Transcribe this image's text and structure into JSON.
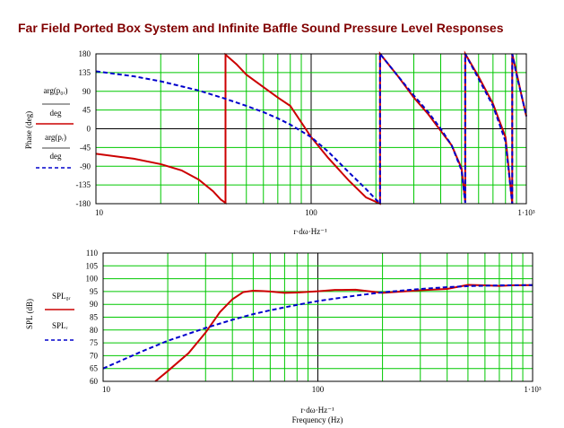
{
  "title": "Far Field Ported Box System and Infinite Baffle Sound Pressure Level Responses",
  "colors": {
    "red_series": "#cc0000",
    "blue_series": "#0000cc",
    "grid": "#00c800",
    "title": "#800000"
  },
  "chart_data": [
    {
      "type": "line",
      "xscale": "log",
      "xlim": [
        10,
        1000
      ],
      "ylim": [
        -180,
        180
      ],
      "grid": true,
      "ylabel": "Phase (deg)",
      "xlabel": "r·dω·Hz⁻¹",
      "x_ticks": [
        "10",
        "100",
        "1·10³"
      ],
      "y_ticks": [
        "180",
        "135",
        "90",
        "45",
        "0",
        "-45",
        "-90",
        "-135",
        "-180"
      ],
      "legend": [
        {
          "line1": "arg(p₀ᵣ)",
          "line2": "deg",
          "color": "#cc0000",
          "style": "solid"
        },
        {
          "line1": "arg(pᵣ)",
          "line2": "deg",
          "color": "#0000cc",
          "style": "dashed"
        }
      ],
      "series": [
        {
          "color": "#cc0000",
          "style": "solid",
          "x": [
            10,
            15,
            20,
            25,
            30,
            35,
            38,
            40,
            40,
            45,
            50,
            60,
            70,
            80,
            100,
            120,
            150,
            180,
            209,
            209,
            250,
            300,
            350,
            400,
            450,
            500,
            520,
            520,
            600,
            700,
            800,
            860,
            860,
            900,
            950,
            1000
          ],
          "y": [
            -60,
            -72,
            -85,
            -100,
            -122,
            -150,
            -170,
            -178,
            178,
            155,
            130,
            100,
            75,
            55,
            -20,
            -70,
            -125,
            -165,
            -180,
            180,
            130,
            75,
            35,
            -5,
            -40,
            -95,
            -175,
            180,
            125,
            60,
            -20,
            -180,
            180,
            135,
            80,
            30
          ]
        },
        {
          "color": "#0000cc",
          "style": "dashed",
          "x": [
            10,
            15,
            20,
            30,
            40,
            50,
            60,
            70,
            80,
            100,
            120,
            150,
            180,
            209,
            209,
            250,
            300,
            350,
            400,
            450,
            500,
            520,
            520,
            600,
            700,
            800,
            860,
            860,
            900,
            950,
            1000
          ],
          "y": [
            138,
            126,
            114,
            92,
            72,
            55,
            40,
            25,
            10,
            -20,
            -55,
            -105,
            -145,
            -180,
            180,
            130,
            80,
            40,
            0,
            -40,
            -100,
            -178,
            180,
            120,
            55,
            -30,
            -180,
            180,
            130,
            80,
            30
          ]
        }
      ]
    },
    {
      "type": "line",
      "xscale": "log",
      "xlim": [
        10,
        1000
      ],
      "ylim": [
        60,
        110
      ],
      "grid": true,
      "ylabel": "SPL (dB)",
      "xlabel": "r·dω·Hz⁻¹",
      "xlabel2": "Frequency (Hz)",
      "x_ticks": [
        "10",
        "100",
        "1·10³"
      ],
      "y_ticks": [
        "110",
        "105",
        "100",
        "95",
        "90",
        "85",
        "80",
        "75",
        "70",
        "65",
        "60"
      ],
      "legend": [
        {
          "line1": "SPL₀ᵣ",
          "color": "#cc0000",
          "style": "solid"
        },
        {
          "line1": "SPLᵣ",
          "color": "#0000cc",
          "style": "dashed"
        }
      ],
      "series": [
        {
          "color": "#cc0000",
          "style": "solid",
          "x": [
            17.5,
            20,
            25,
            30,
            35,
            40,
            45,
            50,
            55,
            60,
            70,
            80,
            100,
            120,
            150,
            200,
            300,
            400,
            500,
            600,
            700,
            800,
            1000
          ],
          "y": [
            60,
            64,
            71,
            79,
            87,
            92,
            94.8,
            95.3,
            95.2,
            95,
            94.5,
            94.6,
            95.1,
            95.6,
            95.7,
            94.5,
            95.5,
            96,
            97.6,
            97.4,
            97.2,
            97.4,
            97.5
          ]
        },
        {
          "color": "#0000cc",
          "style": "dashed",
          "x": [
            10,
            15,
            20,
            30,
            40,
            50,
            60,
            80,
            100,
            150,
            200,
            300,
            400,
            500,
            700,
            1000
          ],
          "y": [
            65,
            71.5,
            75.8,
            80.8,
            84,
            86.2,
            87.7,
            89.8,
            91.3,
            93.4,
            94.7,
            96,
            96.7,
            97.1,
            97.4,
            97.5
          ]
        }
      ]
    }
  ]
}
